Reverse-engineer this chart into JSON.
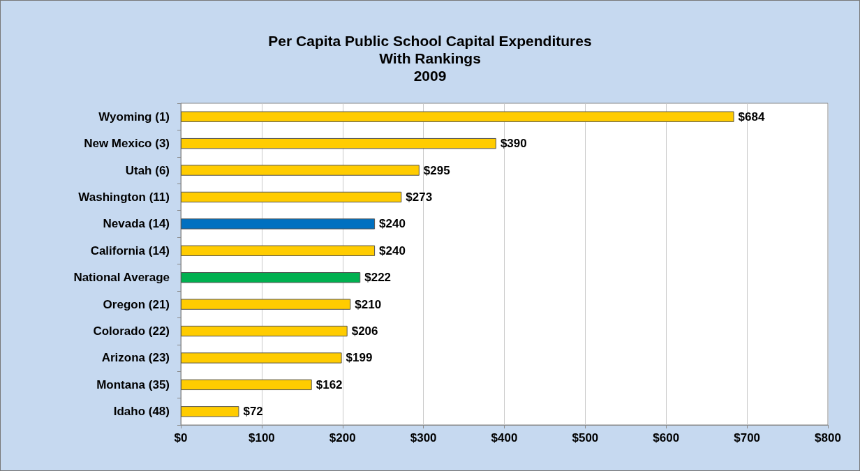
{
  "chart_data": {
    "type": "bar",
    "orientation": "horizontal",
    "title": "Per Capita Public School Capital Expenditures\nWith Rankings\n2009",
    "categories": [
      "Wyoming (1)",
      "New Mexico (3)",
      "Utah (6)",
      "Washington (11)",
      "Nevada (14)",
      "California (14)",
      "National Average",
      "Oregon (21)",
      "Colorado (22)",
      "Arizona (23)",
      "Montana (35)",
      "Idaho (48)"
    ],
    "values": [
      684,
      390,
      295,
      273,
      240,
      240,
      222,
      210,
      206,
      199,
      162,
      72
    ],
    "colors": [
      "#ffcc00",
      "#ffcc00",
      "#ffcc00",
      "#ffcc00",
      "#0070c0",
      "#ffcc00",
      "#00b050",
      "#ffcc00",
      "#ffcc00",
      "#ffcc00",
      "#ffcc00",
      "#ffcc00"
    ],
    "value_labels": [
      "$684",
      "$390",
      "$295",
      "$273",
      "$240",
      "$240",
      "$222",
      "$210",
      "$206",
      "$199",
      "$162",
      "$72"
    ],
    "xlim": [
      0,
      800
    ],
    "xticks": [
      {
        "value": 0,
        "label": "$0"
      },
      {
        "value": 100,
        "label": "$100"
      },
      {
        "value": 200,
        "label": "$200"
      },
      {
        "value": 300,
        "label": "$300"
      },
      {
        "value": 400,
        "label": "$400"
      },
      {
        "value": 500,
        "label": "$500"
      },
      {
        "value": 600,
        "label": "$600"
      },
      {
        "value": 700,
        "label": "$700"
      },
      {
        "value": 800,
        "label": "$800"
      }
    ],
    "grid": "x"
  }
}
